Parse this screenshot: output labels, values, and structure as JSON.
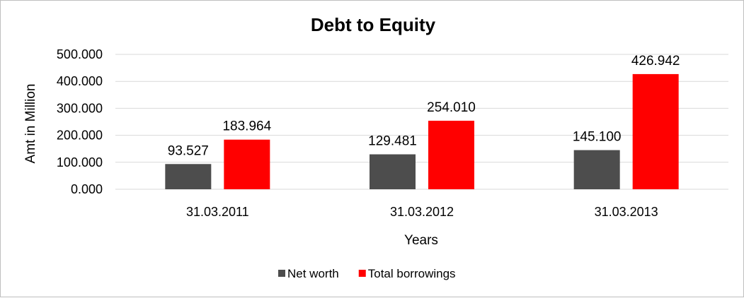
{
  "chart_data": {
    "type": "bar",
    "title": "Debt to Equity",
    "xlabel": "Years",
    "ylabel": "Amt in Million",
    "categories": [
      "31.03.2011",
      "31.03.2012",
      "31.03.2013"
    ],
    "series": [
      {
        "name": "Net worth",
        "values": [
          93.527,
          129.481,
          145.1
        ],
        "labels": [
          "93.527",
          "129.481",
          "145.100"
        ],
        "color": "#4d4d4d"
      },
      {
        "name": "Total borrowings",
        "values": [
          183.964,
          254.01,
          426.942
        ],
        "labels": [
          "183.964",
          "254.010",
          "426.942"
        ],
        "color": "#ff0000"
      }
    ],
    "ylim": [
      0,
      500
    ],
    "yticks": [
      "0.000",
      "100.000",
      "200.000",
      "300.000",
      "400.000",
      "500.000"
    ],
    "grid": true,
    "legend_position": "bottom"
  }
}
